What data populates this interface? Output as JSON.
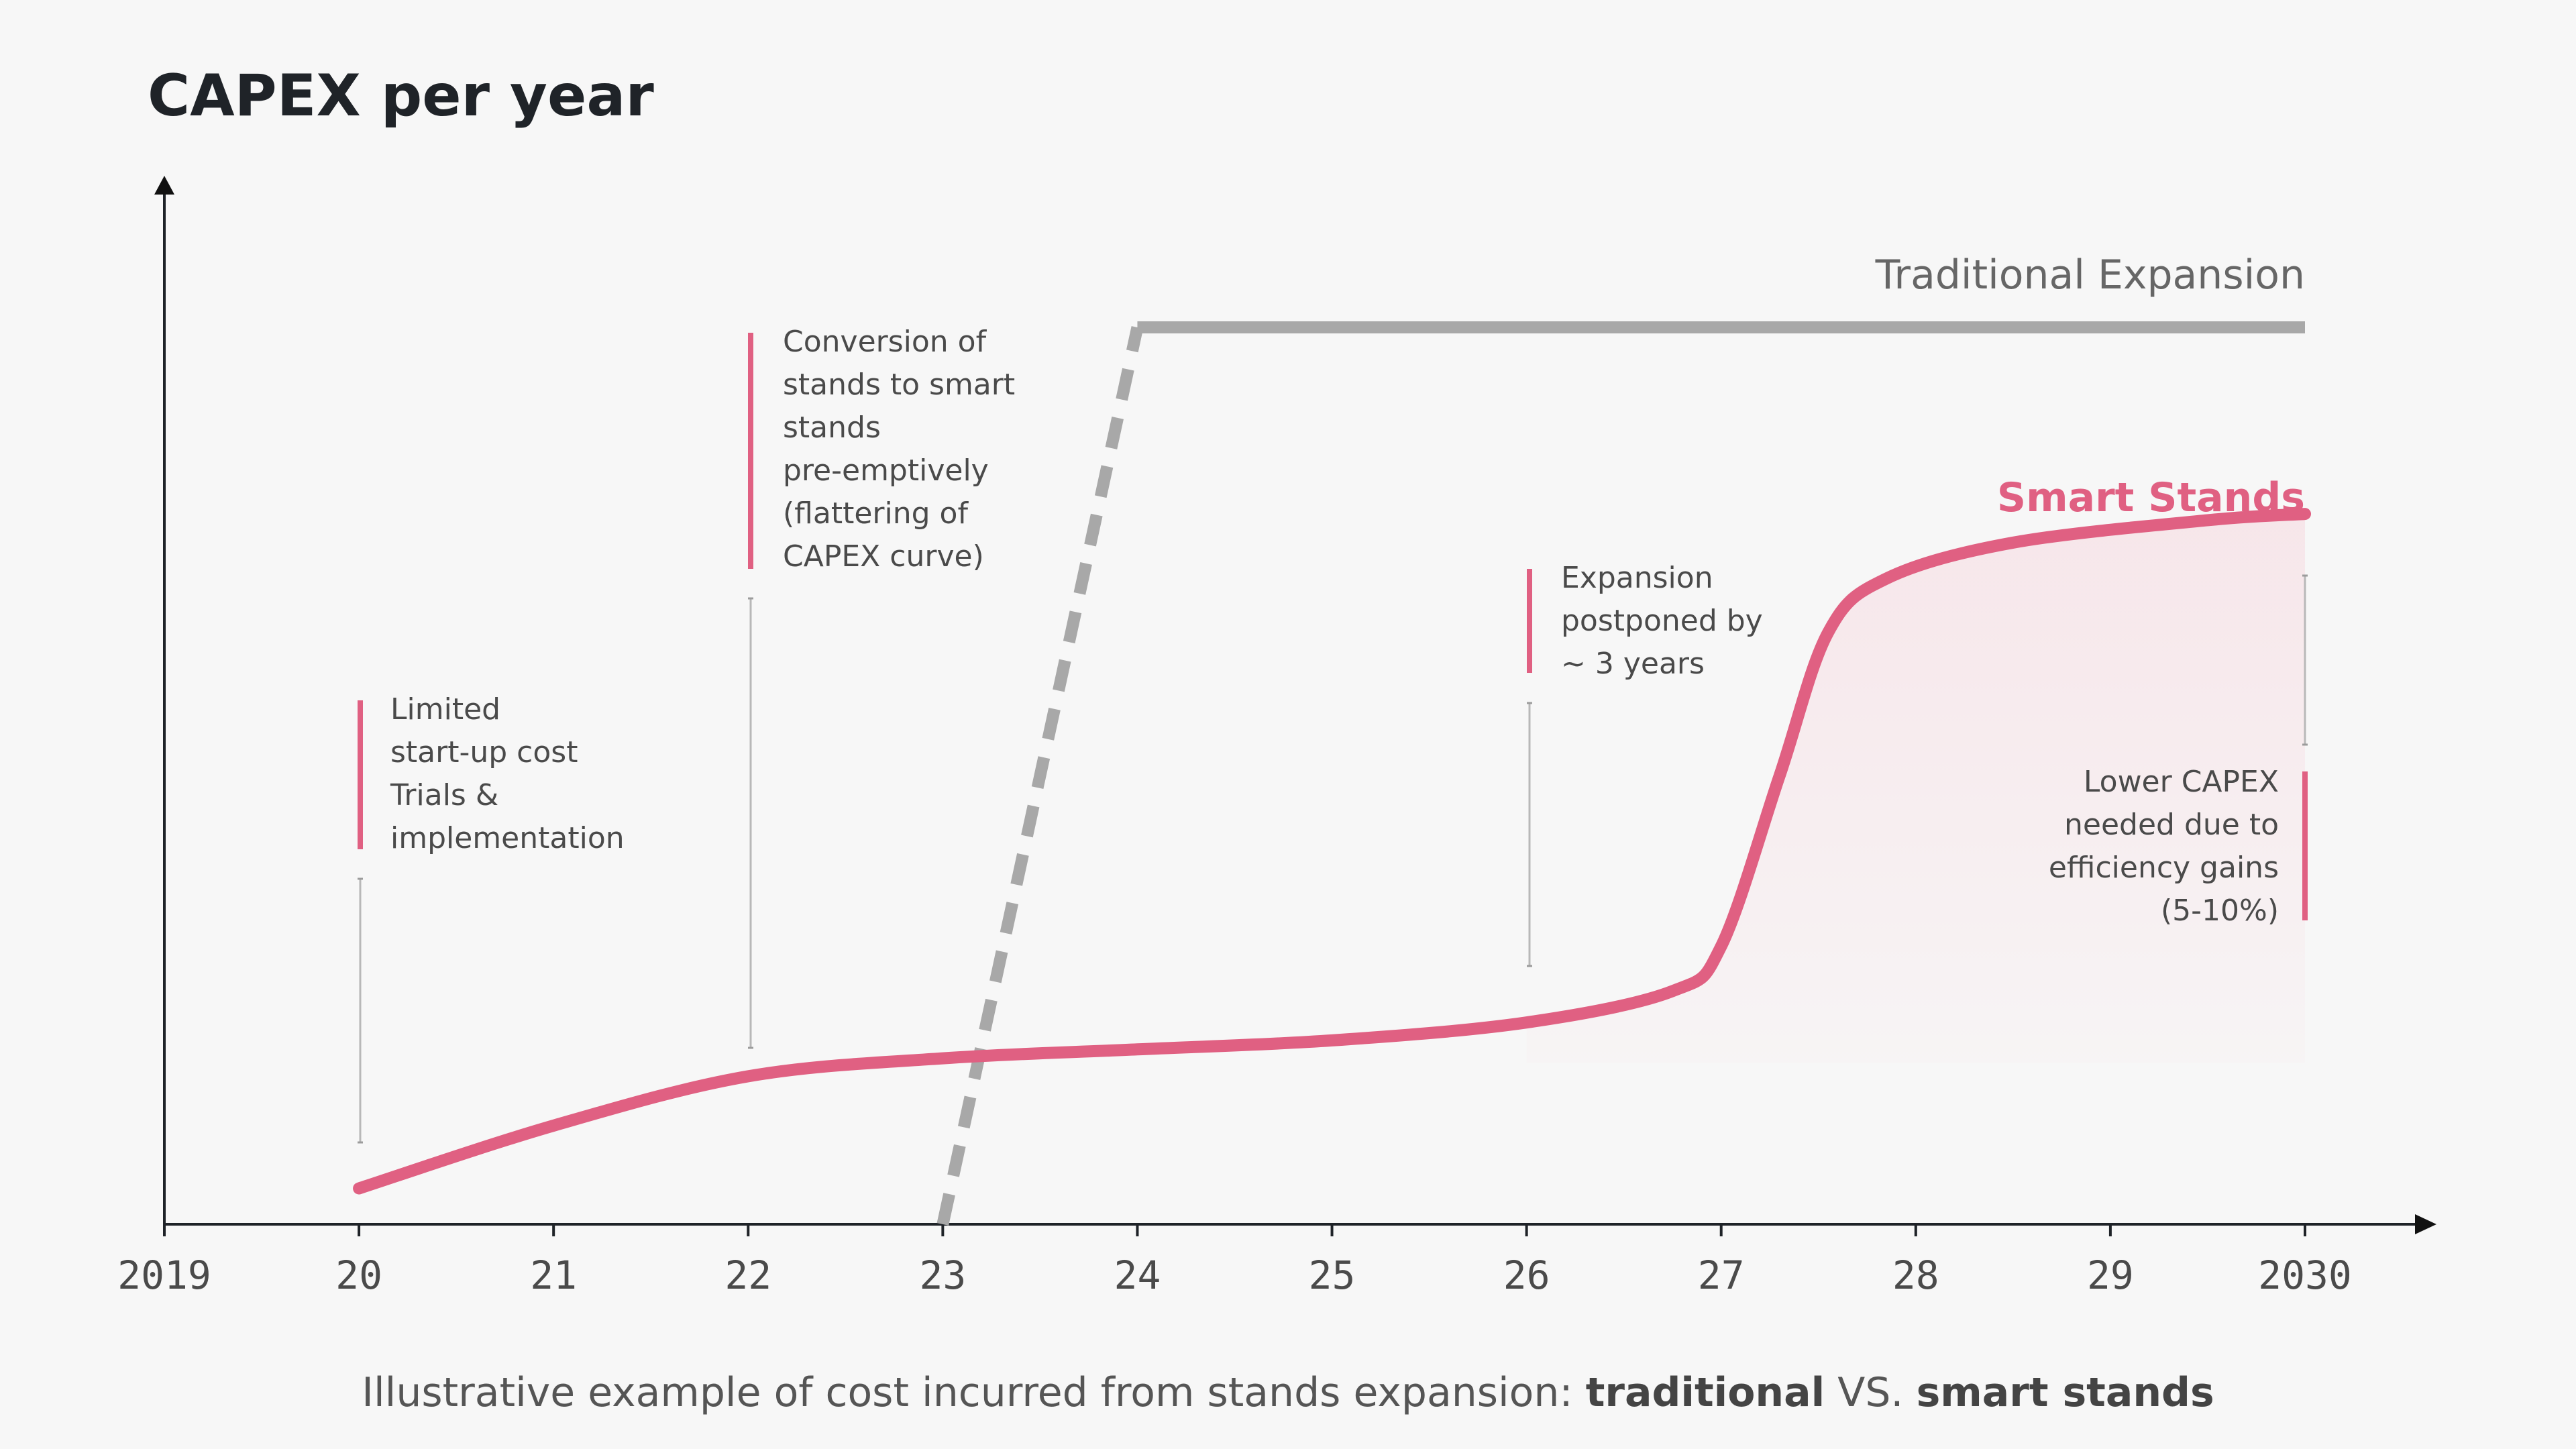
{
  "chart_data": {
    "type": "line",
    "title": "CAPEX per year",
    "x_ticks": [
      "2019",
      "20",
      "21",
      "22",
      "23",
      "24",
      "25",
      "26",
      "27",
      "28",
      "29",
      "2030"
    ],
    "x_range": [
      2019,
      2030
    ],
    "series": [
      {
        "name": "Traditional Expansion",
        "color": "#a8a8a8",
        "style": "dashed-then-solid",
        "points": [
          {
            "x": 2023.0,
            "y": 0
          },
          {
            "x": 2024.0,
            "y": 100
          },
          {
            "x": 2030.0,
            "y": 100
          }
        ]
      },
      {
        "name": "Smart Stands",
        "color": "#e06082",
        "style": "solid",
        "points": [
          {
            "x": 2020.0,
            "y": 4
          },
          {
            "x": 2021.0,
            "y": 11
          },
          {
            "x": 2022.0,
            "y": 16.5
          },
          {
            "x": 2023.0,
            "y": 18.5
          },
          {
            "x": 2024.0,
            "y": 19.5
          },
          {
            "x": 2025.0,
            "y": 20.5
          },
          {
            "x": 2026.0,
            "y": 22.5
          },
          {
            "x": 2026.75,
            "y": 26
          },
          {
            "x": 2027.0,
            "y": 31
          },
          {
            "x": 2027.3,
            "y": 50
          },
          {
            "x": 2027.55,
            "y": 66
          },
          {
            "x": 2027.85,
            "y": 72
          },
          {
            "x": 2028.5,
            "y": 76
          },
          {
            "x": 2029.5,
            "y": 78.5
          },
          {
            "x": 2030.0,
            "y": 79.2
          }
        ]
      }
    ],
    "annotations": [
      {
        "x": 2020,
        "lines": [
          "Limited",
          "start-up cost",
          "Trials &",
          "implementation"
        ]
      },
      {
        "x": 2022,
        "lines": [
          "Conversion of",
          "stands to smart",
          "stands",
          "pre-emptively",
          "(flattering of",
          "CAPEX curve)"
        ]
      },
      {
        "x": 2026,
        "lines": [
          "Expansion",
          "postponed by",
          "~ 3 years"
        ]
      },
      {
        "x": 2030,
        "lines": [
          "Lower CAPEX",
          "needed due to",
          "efficiency gains",
          "(5-10%)"
        ]
      }
    ],
    "caption": {
      "prefix": "Illustrative example of cost incurred from stands expansion: ",
      "bold1": "traditional",
      "middle": " VS. ",
      "bold2": "smart stands"
    },
    "grid": false,
    "legend": "inline"
  }
}
